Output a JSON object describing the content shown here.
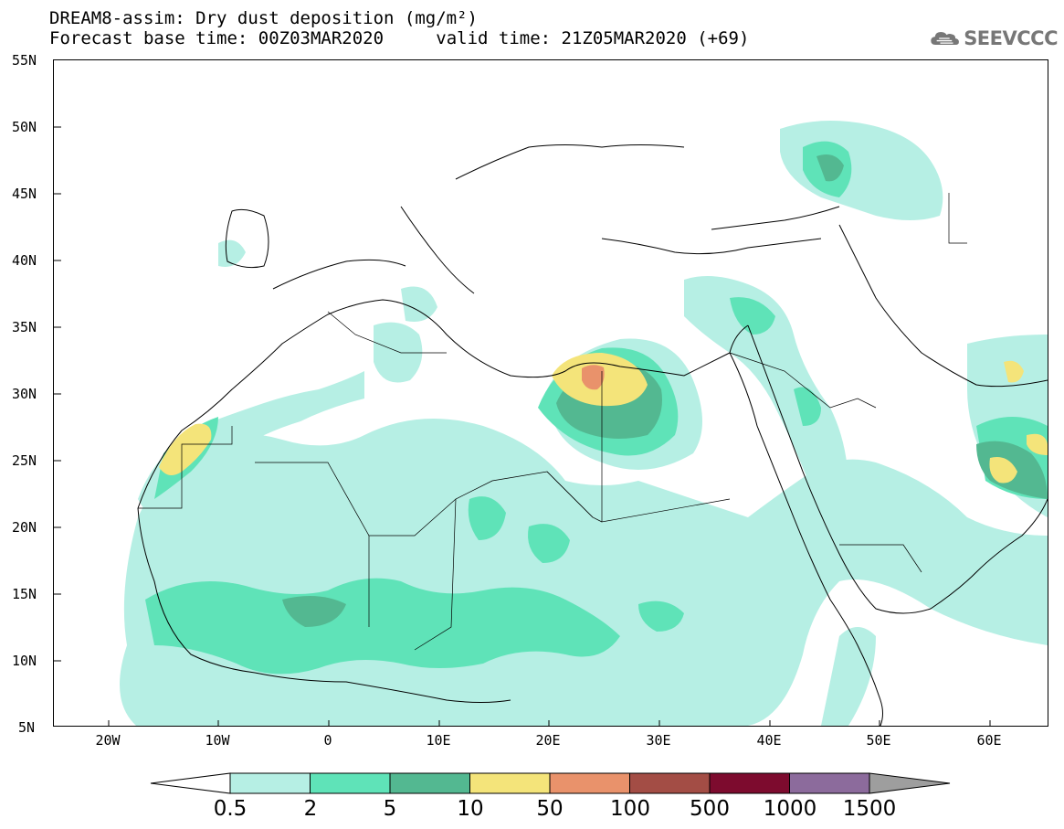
{
  "title": {
    "line1": "DREAM8-assim: Dry dust deposition (mg/m²)",
    "line2_left": "Forecast base time: 00Z03MAR2020",
    "line2_right": "valid time: 21Z05MAR2020 (+69)"
  },
  "logo": {
    "text": "SEEVCCC",
    "icon": "cloud-icon"
  },
  "axes": {
    "lat_labels": [
      "55N",
      "50N",
      "45N",
      "40N",
      "35N",
      "30N",
      "25N",
      "20N",
      "15N",
      "10N",
      "5N"
    ],
    "lon_labels": [
      "20W",
      "10W",
      "0",
      "10E",
      "20E",
      "30E",
      "40E",
      "50E",
      "60E"
    ]
  },
  "legend": {
    "labels": [
      "0.5",
      "2",
      "5",
      "10",
      "50",
      "100",
      "500",
      "1000",
      "1500"
    ],
    "colors": [
      "#ffffff",
      "#b6efe4",
      "#5fe3b8",
      "#53b891",
      "#f4e47a",
      "#e9926b",
      "#a34d45",
      "#7d0b2e",
      "#8c6b9c",
      "#9e9e9e"
    ]
  }
}
